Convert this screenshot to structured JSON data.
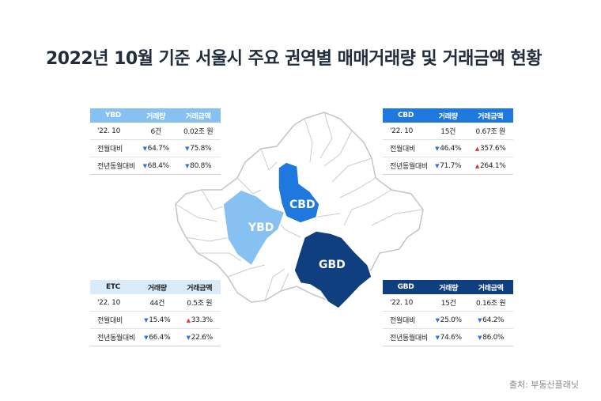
{
  "title": "2022년 10월 기준 서울시 주요 권역별 매매거래량 및 거래금액 현황",
  "source": "출처: 부동산플래닛",
  "map_labels": {
    "ybd": "YBD",
    "cbd": "CBD",
    "gbd": "GBD"
  },
  "colors": {
    "ybd": "#86c1f2",
    "cbd": "#1f78de",
    "gbd": "#103f7f",
    "etc": "#d9ebf9",
    "up": "#e53935",
    "down": "#2a74d8"
  },
  "headers": {
    "volume": "거래량",
    "amount": "거래금액"
  },
  "row_labels": {
    "month": "'22. 10",
    "mom": "전월대비",
    "yoy": "전년동월대비"
  },
  "panels": {
    "ybd": {
      "name": "YBD",
      "volume": "6건",
      "amount": "0.02조 원",
      "mom_volume": "64.7%",
      "mom_amount": "75.8%",
      "yoy_volume": "68.4%",
      "yoy_amount": "80.8%"
    },
    "cbd": {
      "name": "CBD",
      "volume": "15건",
      "amount": "0.67조 원",
      "mom_volume": "46.4%",
      "mom_amount": "357.6%",
      "yoy_volume": "71.7%",
      "yoy_amount": "264.1%"
    },
    "etc": {
      "name": "ETC",
      "volume": "44건",
      "amount": "0.5조 원",
      "mom_volume": "15.4%",
      "mom_amount": "33.3%",
      "yoy_volume": "66.4%",
      "yoy_amount": "22.6%"
    },
    "gbd": {
      "name": "GBD",
      "volume": "15건",
      "amount": "0.16조 원",
      "mom_volume": "25.0%",
      "mom_amount": "64.2%",
      "yoy_volume": "74.6%",
      "yoy_amount": "86.0%"
    }
  }
}
